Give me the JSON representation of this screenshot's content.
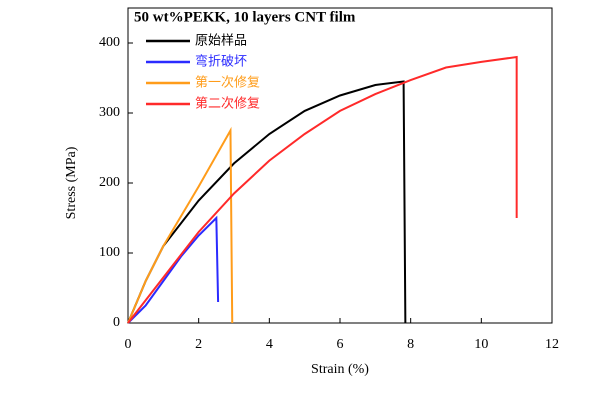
{
  "chart_data": {
    "type": "line",
    "title": "50 wt%PEKK, 10 layers CNT film",
    "x_label": "Strain (%)",
    "y_label": "Stress (MPa)",
    "xlim": [
      0,
      12
    ],
    "xticks": [
      0,
      2,
      4,
      6,
      8,
      10,
      12
    ],
    "ylim": [
      0,
      450
    ],
    "yticks": [
      0,
      100,
      200,
      300,
      400
    ],
    "grid": false,
    "legend": "upper left",
    "series": [
      {
        "name": "原始样品",
        "color": "#000000",
        "x": [
          0,
          0.5,
          1,
          2,
          3,
          4,
          5,
          6,
          7,
          7.8,
          7.85
        ],
        "values": [
          0,
          60,
          110,
          175,
          228,
          270,
          303,
          325,
          340,
          345,
          0
        ]
      },
      {
        "name": "弯折破坏",
        "color": "#2b2bff",
        "x": [
          0,
          0.5,
          1,
          1.5,
          2,
          2.5,
          2.55
        ],
        "values": [
          0,
          25,
          60,
          95,
          125,
          150,
          30
        ]
      },
      {
        "name": "第一次修复",
        "color": "#ff9c1a",
        "x": [
          0,
          0.5,
          1,
          2,
          2.9,
          2.95
        ],
        "values": [
          0,
          60,
          110,
          195,
          275,
          0
        ]
      },
      {
        "name": "第二次修复",
        "color": "#ff2a2a",
        "x": [
          0,
          1,
          2,
          3,
          4,
          5,
          6,
          7,
          8,
          9,
          10,
          11,
          11
        ],
        "values": [
          0,
          65,
          130,
          185,
          232,
          270,
          303,
          327,
          347,
          365,
          373,
          380,
          150
        ]
      }
    ]
  }
}
